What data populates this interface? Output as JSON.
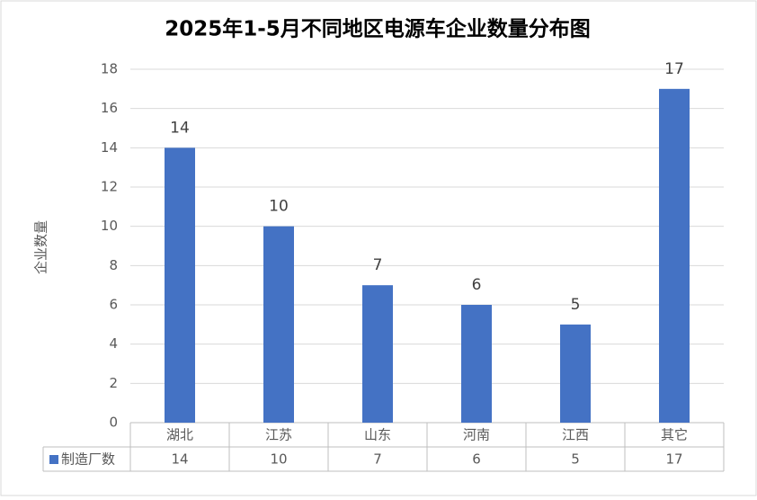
{
  "chart_data": {
    "type": "bar",
    "title": "2025年1-5月不同地区电源车企业数量分布图",
    "y_label": "企业数量",
    "categories": [
      "湖北",
      "江苏",
      "山东",
      "河南",
      "江西",
      "其它"
    ],
    "series": [
      {
        "name": "制造厂数",
        "color": "#4472c4",
        "values": [
          14,
          10,
          7,
          6,
          5,
          17
        ]
      }
    ],
    "ylim": [
      0,
      18
    ],
    "yticks": [
      0,
      2,
      4,
      6,
      8,
      10,
      12,
      14,
      16,
      18
    ],
    "grid": true,
    "data_table": true
  }
}
